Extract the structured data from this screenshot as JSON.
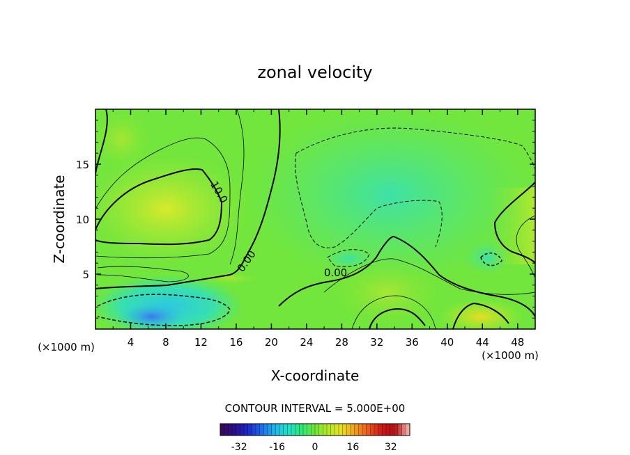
{
  "chart_data": {
    "type": "heatmap",
    "title": "zonal velocity",
    "xlabel": "X-coordinate",
    "ylabel": "Z-coordinate",
    "xlim": [
      0,
      50
    ],
    "ylim": [
      0,
      20
    ],
    "x_ticks": [
      4,
      8,
      12,
      16,
      20,
      24,
      28,
      32,
      36,
      40,
      44,
      48
    ],
    "y_ticks": [
      5,
      10,
      15
    ],
    "x_unit_label_left": "(×1000 m)",
    "x_unit_label_right": "(×1000 m)",
    "contour_interval_text": "CONTOUR INTERVAL = 5.000E+00",
    "contour_labels": [
      {
        "text": "10.0",
        "x": 13.7,
        "y": 12.3
      },
      {
        "text": "0.00",
        "x": 17.5,
        "y": 6.0
      },
      {
        "text": "0.00",
        "x": 27.3,
        "y": 4.8
      }
    ],
    "colorbar": {
      "range": [
        -40,
        40
      ],
      "ticks": [
        -32,
        -16,
        0,
        16,
        32
      ],
      "colors": [
        "#3a0a5a",
        "#2a0f8c",
        "#1a2bd0",
        "#1f6fe8",
        "#23b8e8",
        "#20e0c8",
        "#2ee878",
        "#6ee63a",
        "#b6e82a",
        "#e8e020",
        "#f0a020",
        "#ea5a20",
        "#d01818",
        "#b01010",
        "#f0a8a0"
      ]
    }
  }
}
